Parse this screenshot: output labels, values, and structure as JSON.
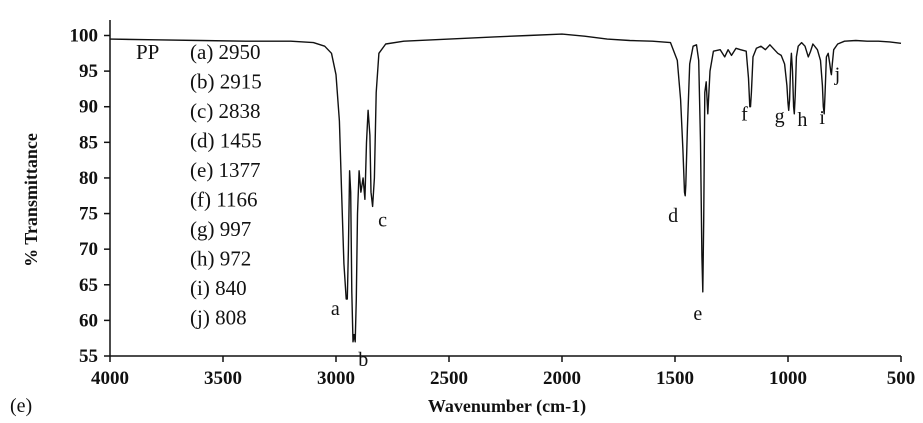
{
  "panel_label": "(e)",
  "chart_data": {
    "type": "line",
    "title": "",
    "xlabel": "Wavenumber (cm-1)",
    "ylabel": "% Transmittance",
    "xlim": [
      4000,
      500
    ],
    "ylim": [
      55,
      101
    ],
    "x_reversed": true,
    "x_ticks": [
      4000,
      3500,
      3000,
      2500,
      2000,
      1500,
      1000,
      500
    ],
    "y_ticks": [
      55,
      60,
      65,
      70,
      75,
      80,
      85,
      90,
      95,
      100
    ],
    "grid": false,
    "legend_title": "PP",
    "peaks": [
      {
        "label": "a",
        "wavenumber": 2950,
        "text": "(a) 2950"
      },
      {
        "label": "b",
        "wavenumber": 2915,
        "text": "(b) 2915"
      },
      {
        "label": "c",
        "wavenumber": 2838,
        "text": "(c) 2838"
      },
      {
        "label": "d",
        "wavenumber": 1455,
        "text": "(d) 1455"
      },
      {
        "label": "e",
        "wavenumber": 1377,
        "text": "(e) 1377"
      },
      {
        "label": "f",
        "wavenumber": 1166,
        "text": "(f) 1166"
      },
      {
        "label": "g",
        "wavenumber": 997,
        "text": "(g) 997"
      },
      {
        "label": "h",
        "wavenumber": 972,
        "text": "(h) 972"
      },
      {
        "label": "i",
        "wavenumber": 840,
        "text": "(i) 840"
      },
      {
        "label": "j",
        "wavenumber": 808,
        "text": "(j) 808"
      }
    ],
    "series": [
      {
        "values": [
          [
            4000,
            99.5
          ],
          [
            3800,
            99.4
          ],
          [
            3600,
            99.3
          ],
          [
            3400,
            99.2
          ],
          [
            3200,
            99.2
          ],
          [
            3100,
            99.0
          ],
          [
            3050,
            98.5
          ],
          [
            3020,
            97.5
          ],
          [
            3000,
            94.5
          ],
          [
            2985,
            88.0
          ],
          [
            2975,
            78.0
          ],
          [
            2965,
            68.0
          ],
          [
            2955,
            63.0
          ],
          [
            2950,
            63.0
          ],
          [
            2945,
            70.0
          ],
          [
            2940,
            81.0
          ],
          [
            2935,
            78.0
          ],
          [
            2930,
            64.0
          ],
          [
            2925,
            57.0
          ],
          [
            2920,
            58.0
          ],
          [
            2915,
            57.0
          ],
          [
            2910,
            63.0
          ],
          [
            2905,
            75.0
          ],
          [
            2898,
            81.0
          ],
          [
            2890,
            78.0
          ],
          [
            2880,
            80.0
          ],
          [
            2872,
            77.0
          ],
          [
            2865,
            85.0
          ],
          [
            2858,
            89.5
          ],
          [
            2850,
            86.0
          ],
          [
            2845,
            78.0
          ],
          [
            2838,
            76.0
          ],
          [
            2830,
            80.0
          ],
          [
            2822,
            92.0
          ],
          [
            2810,
            97.5
          ],
          [
            2780,
            98.8
          ],
          [
            2700,
            99.2
          ],
          [
            2500,
            99.5
          ],
          [
            2300,
            99.8
          ],
          [
            2150,
            100.0
          ],
          [
            2000,
            100.2
          ],
          [
            1900,
            99.9
          ],
          [
            1800,
            99.5
          ],
          [
            1700,
            99.3
          ],
          [
            1600,
            99.2
          ],
          [
            1520,
            99.0
          ],
          [
            1490,
            96.5
          ],
          [
            1475,
            91.0
          ],
          [
            1465,
            84.0
          ],
          [
            1458,
            78.0
          ],
          [
            1455,
            77.5
          ],
          [
            1452,
            79.0
          ],
          [
            1445,
            87.0
          ],
          [
            1435,
            96.0
          ],
          [
            1420,
            98.5
          ],
          [
            1405,
            98.7
          ],
          [
            1395,
            96.5
          ],
          [
            1387,
            85.0
          ],
          [
            1381,
            69.0
          ],
          [
            1377,
            64.0
          ],
          [
            1373,
            74.0
          ],
          [
            1368,
            92.0
          ],
          [
            1362,
            93.5
          ],
          [
            1355,
            89.0
          ],
          [
            1345,
            95.0
          ],
          [
            1330,
            97.8
          ],
          [
            1300,
            98.0
          ],
          [
            1280,
            97.0
          ],
          [
            1265,
            98.0
          ],
          [
            1250,
            97.2
          ],
          [
            1230,
            98.2
          ],
          [
            1210,
            98.0
          ],
          [
            1185,
            97.8
          ],
          [
            1175,
            94.0
          ],
          [
            1169,
            90.0
          ],
          [
            1166,
            90.0
          ],
          [
            1162,
            92.0
          ],
          [
            1155,
            97.0
          ],
          [
            1140,
            98.2
          ],
          [
            1120,
            98.5
          ],
          [
            1100,
            98.0
          ],
          [
            1080,
            98.7
          ],
          [
            1060,
            98.0
          ],
          [
            1045,
            97.5
          ],
          [
            1030,
            97.2
          ],
          [
            1015,
            96.0
          ],
          [
            1005,
            93.0
          ],
          [
            1000,
            90.5
          ],
          [
            997,
            89.5
          ],
          [
            993,
            91.0
          ],
          [
            988,
            96.0
          ],
          [
            985,
            97.5
          ],
          [
            980,
            95.0
          ],
          [
            975,
            90.0
          ],
          [
            972,
            89.0
          ],
          [
            968,
            91.5
          ],
          [
            963,
            97.0
          ],
          [
            955,
            98.5
          ],
          [
            940,
            99.0
          ],
          [
            925,
            98.5
          ],
          [
            910,
            97.0
          ],
          [
            900,
            97.8
          ],
          [
            890,
            98.8
          ],
          [
            870,
            98.0
          ],
          [
            856,
            96.5
          ],
          [
            848,
            93.0
          ],
          [
            844,
            90.0
          ],
          [
            840,
            89.0
          ],
          [
            836,
            92.0
          ],
          [
            830,
            97.0
          ],
          [
            822,
            97.5
          ],
          [
            815,
            96.0
          ],
          [
            810,
            94.8
          ],
          [
            808,
            94.5
          ],
          [
            804,
            96.0
          ],
          [
            798,
            98.0
          ],
          [
            780,
            98.8
          ],
          [
            750,
            99.2
          ],
          [
            700,
            99.3
          ],
          [
            650,
            99.2
          ],
          [
            600,
            99.2
          ],
          [
            550,
            99.1
          ],
          [
            500,
            98.9
          ]
        ]
      }
    ]
  }
}
